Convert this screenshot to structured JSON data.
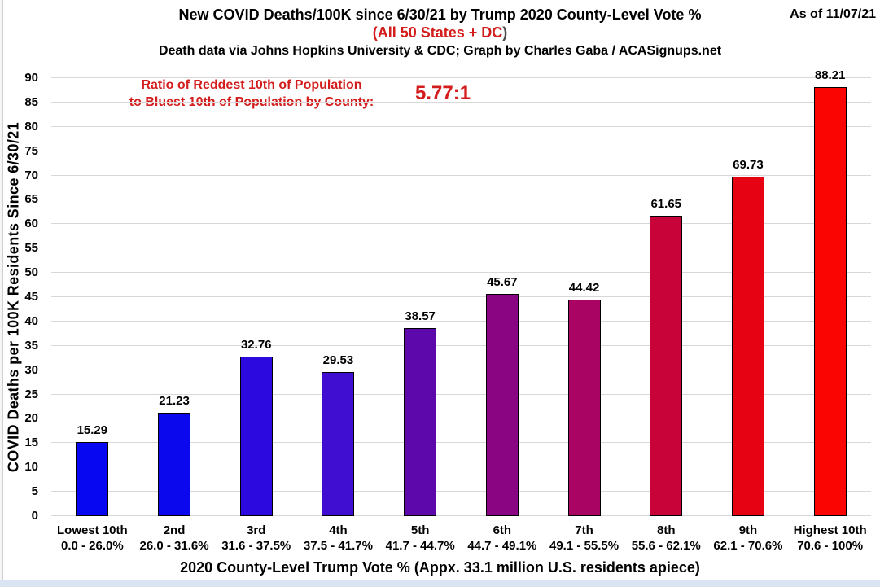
{
  "colors": {
    "red_accent": "#d31c1c",
    "subtitle_paren": "#4a4a4a",
    "grid": "#d8d8d8",
    "bar_border": "#000000",
    "strip": "#dbe4f2",
    "edge": "#cfcfcf"
  },
  "chart_data": {
    "type": "bar",
    "title": "New COVID Deaths/100K since 6/30/21 by Trump 2020 County-Level Vote %",
    "subtitle_red": "(All 50 States + DC",
    "subtitle_paren": ")",
    "credit": "Death data via Johns Hopkins University & CDC; Graph by Charles Gaba / ACASignups.net",
    "as_of": "As of 11/07/21",
    "annotation": {
      "line1": "Ratio of Reddest 10th of Population",
      "line2": "to Bluest 10th of Population by County:",
      "ratio": "5.77:1"
    },
    "xlabel": "2020 County-Level Trump Vote % (Appx. 33.1 million U.S. residents apiece)",
    "ylabel": "COVID Deaths per 100K Residents Since 6/30/21",
    "ylim": [
      0,
      90
    ],
    "ytick_step": 5,
    "grid": true,
    "legend": "none",
    "categories": [
      "Lowest 10th",
      "2nd",
      "3rd",
      "4th",
      "5th",
      "6th",
      "7th",
      "8th",
      "9th",
      "Highest 10th"
    ],
    "category_ranges": [
      "0.0 - 26.0%",
      "26.0 - 31.6%",
      "31.6 - 37.5%",
      "37.5 - 41.7%",
      "41.7 - 44.7%",
      "44.7 - 49.1%",
      "49.1 - 55.5%",
      "55.6 - 62.1%",
      "62.1 - 70.6%",
      "70.6 - 100%"
    ],
    "values": [
      15.29,
      21.23,
      32.76,
      29.53,
      38.57,
      45.67,
      44.42,
      61.65,
      69.73,
      88.21
    ],
    "bar_colors": [
      "#0807f2",
      "#0c08ee",
      "#2c0adf",
      "#3f0ed0",
      "#5d08ab",
      "#8a0581",
      "#a90463",
      "#c7033a",
      "#e60213",
      "#fb0502"
    ]
  }
}
